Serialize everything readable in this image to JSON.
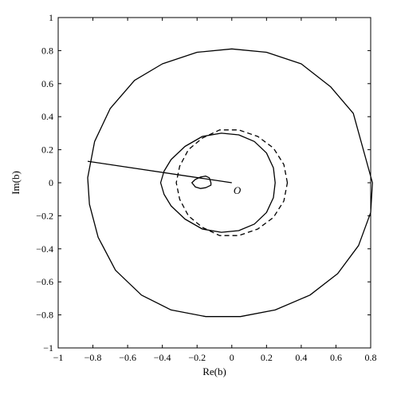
{
  "chart_data": {
    "type": "line",
    "xlabel": "Re(b)",
    "ylabel": "Im(b)",
    "xlim": [
      -1,
      0.8
    ],
    "ylim": [
      -1,
      1
    ],
    "xticks": [
      -1,
      -0.8,
      -0.6,
      -0.4,
      -0.2,
      0,
      0.2,
      0.4,
      0.6,
      0.8
    ],
    "yticks": [
      -1,
      -0.8,
      -0.6,
      -0.4,
      -0.2,
      0,
      0.2,
      0.4,
      0.6,
      0.8,
      1
    ],
    "xtick_labels": [
      "−1",
      "−0.8",
      "−0.6",
      "−0.4",
      "−0.2",
      "0",
      "0.2",
      "0.4",
      "0.6",
      "0.8"
    ],
    "ytick_labels": [
      "−1",
      "−0.8",
      "−0.6",
      "−0.4",
      "−0.2",
      "0",
      "0.2",
      "0.4",
      "0.6",
      "0.8",
      "1"
    ],
    "grid": false,
    "annotations": [
      {
        "text": "O",
        "x": 0.005,
        "y": -0.005
      }
    ],
    "series": [
      {
        "style": "solid",
        "shape": "large-circle",
        "x": [
          0.81,
          0.7,
          0.57,
          0.4,
          0.2,
          0.0,
          -0.2,
          -0.4,
          -0.56,
          -0.7,
          -0.79,
          -0.83,
          -0.82,
          -0.77,
          -0.67,
          -0.52,
          -0.35,
          -0.15,
          0.05,
          0.25,
          0.45,
          0.61,
          0.73,
          0.8,
          0.81
        ],
        "y": [
          0.0,
          0.42,
          0.58,
          0.72,
          0.79,
          0.81,
          0.79,
          0.72,
          0.62,
          0.45,
          0.25,
          0.03,
          -0.13,
          -0.33,
          -0.53,
          -0.68,
          -0.77,
          -0.81,
          -0.81,
          -0.77,
          -0.68,
          -0.55,
          -0.38,
          -0.18,
          0.0
        ]
      },
      {
        "style": "solid",
        "shape": "cardioid",
        "x": [
          0.25,
          0.24,
          0.2,
          0.13,
          0.04,
          -0.06,
          -0.17,
          -0.27,
          -0.35,
          -0.39,
          -0.41,
          -0.39,
          -0.35,
          -0.27,
          -0.17,
          -0.06,
          0.04,
          0.13,
          0.2,
          0.24,
          0.25
        ],
        "y": [
          0.0,
          0.09,
          0.18,
          0.25,
          0.29,
          0.3,
          0.28,
          0.22,
          0.14,
          0.07,
          0.0,
          -0.07,
          -0.14,
          -0.22,
          -0.28,
          -0.3,
          -0.29,
          -0.25,
          -0.18,
          -0.09,
          0.0
        ]
      },
      {
        "style": "dashed",
        "shape": "circle",
        "x": [
          0.32,
          0.3,
          0.24,
          0.15,
          0.04,
          -0.07,
          -0.17,
          -0.25,
          -0.3,
          -0.32,
          -0.3,
          -0.25,
          -0.17,
          -0.07,
          0.04,
          0.15,
          0.24,
          0.3,
          0.32
        ],
        "y": [
          0.0,
          0.11,
          0.21,
          0.28,
          0.32,
          0.32,
          0.27,
          0.2,
          0.1,
          0.0,
          -0.1,
          -0.2,
          -0.27,
          -0.32,
          -0.32,
          -0.28,
          -0.21,
          -0.11,
          0.0
        ]
      },
      {
        "style": "solid",
        "shape": "small-loop",
        "x": [
          -0.12,
          -0.13,
          -0.15,
          -0.18,
          -0.21,
          -0.23,
          -0.21,
          -0.18,
          -0.15,
          -0.12,
          -0.12
        ],
        "y": [
          0.0,
          0.03,
          0.04,
          0.035,
          0.02,
          0.0,
          -0.025,
          -0.035,
          -0.03,
          -0.015,
          0.0
        ]
      },
      {
        "style": "solid",
        "shape": "segment",
        "x": [
          -0.83,
          0.0
        ],
        "y": [
          0.13,
          0.0
        ]
      }
    ]
  }
}
